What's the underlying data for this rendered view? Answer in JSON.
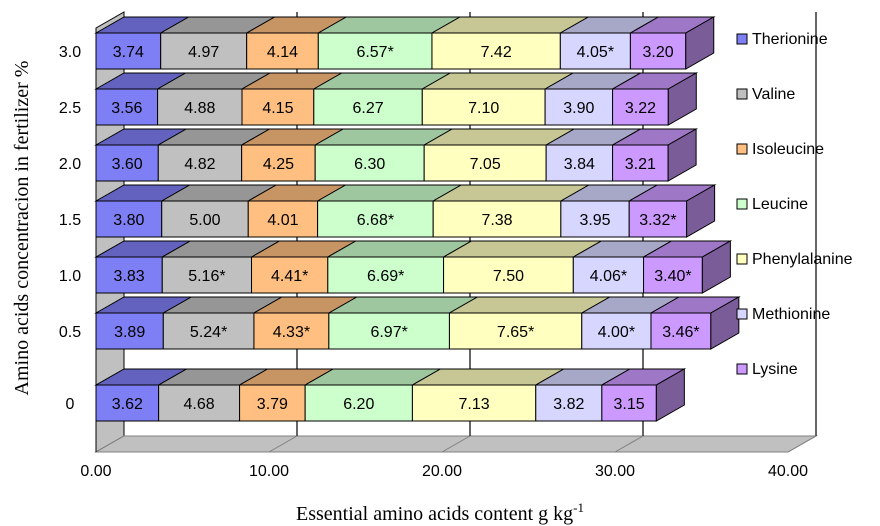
{
  "chart_data": {
    "type": "bar",
    "orientation": "horizontal",
    "stacked": true,
    "three_d": true,
    "categories": [
      "3.0",
      "2.5",
      "2.0",
      "1.5",
      "1.0",
      "0.5",
      "0"
    ],
    "series": [
      {
        "name": "Therionine",
        "color": "#7F7FF5",
        "labels": [
          "3.74",
          "3.56",
          "3.60",
          "3.80",
          "3.83",
          "3.89",
          "3.62"
        ],
        "values": [
          3.74,
          3.56,
          3.6,
          3.8,
          3.83,
          3.89,
          3.62
        ]
      },
      {
        "name": "Valine",
        "color": "#C0C0C0",
        "labels": [
          "4.97",
          "4.88",
          "4.82",
          "5.00",
          "5.16*",
          "5.24*",
          "4.68"
        ],
        "values": [
          4.97,
          4.88,
          4.82,
          5.0,
          5.16,
          5.24,
          4.68
        ]
      },
      {
        "name": "Isoleucine",
        "color": "#FFBF80",
        "labels": [
          "4.14",
          "4.15",
          "4.25",
          "4.01",
          "4.41*",
          "4.33*",
          "3.79"
        ],
        "values": [
          4.14,
          4.15,
          4.25,
          4.01,
          4.41,
          4.33,
          3.79
        ]
      },
      {
        "name": "Leucine",
        "color": "#CCFFCC",
        "labels": [
          "6.57*",
          "6.27",
          "6.30",
          "6.68*",
          "6.69*",
          "6.97*",
          "6.20"
        ],
        "values": [
          6.57,
          6.27,
          6.3,
          6.68,
          6.69,
          6.97,
          6.2
        ]
      },
      {
        "name": "Phenylalanine",
        "color": "#FFFFC0",
        "labels": [
          "7.42",
          "7.10",
          "7.05",
          "7.38",
          "7.50",
          "7.65*",
          "7.13"
        ],
        "values": [
          7.42,
          7.1,
          7.05,
          7.38,
          7.5,
          7.65,
          7.13
        ]
      },
      {
        "name": "Methionine",
        "color": "#D6D6FF",
        "labels": [
          "4.05*",
          "3.90",
          "3.84",
          "3.95",
          "4.06*",
          "4.00*",
          "3.82"
        ],
        "values": [
          4.05,
          3.9,
          3.84,
          3.95,
          4.06,
          4.0,
          3.82
        ]
      },
      {
        "name": "Lysine",
        "color": "#CC99FF",
        "labels": [
          "3.20",
          "3.22",
          "3.21",
          "3.32*",
          "3.40*",
          "3.46*",
          "3.15"
        ],
        "values": [
          3.2,
          3.22,
          3.21,
          3.32,
          3.4,
          3.46,
          3.15
        ]
      }
    ],
    "x_ticks": [
      "0.00",
      "10.00",
      "20.00",
      "30.00",
      "40.00"
    ],
    "xlim": [
      0,
      40
    ],
    "xlabel": "Essential amino acids content g kg",
    "xlabel_sup": "-1",
    "ylabel": "Amino acids concentracion in fertilizer  %",
    "grid": "vertical",
    "legend_position": "right"
  }
}
